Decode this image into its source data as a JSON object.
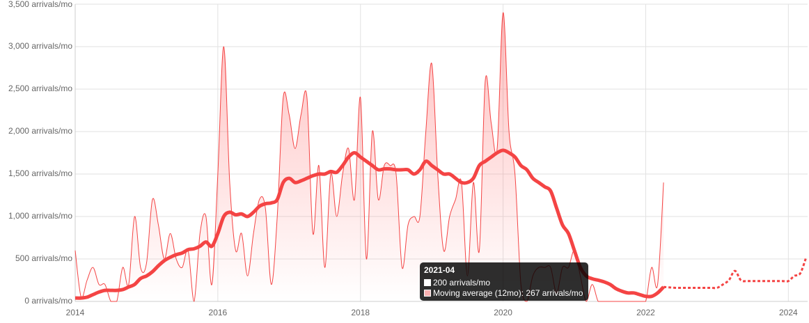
{
  "chart_data": {
    "type": "line",
    "x": [
      "2014-01",
      "2014-02",
      "2014-03",
      "2014-04",
      "2014-05",
      "2014-06",
      "2014-07",
      "2014-08",
      "2014-09",
      "2014-10",
      "2014-11",
      "2014-12",
      "2015-01",
      "2015-02",
      "2015-03",
      "2015-04",
      "2015-05",
      "2015-06",
      "2015-07",
      "2015-08",
      "2015-09",
      "2015-10",
      "2015-11",
      "2015-12",
      "2016-01",
      "2016-02",
      "2016-03",
      "2016-04",
      "2016-05",
      "2016-06",
      "2016-07",
      "2016-08",
      "2016-09",
      "2016-10",
      "2016-11",
      "2016-12",
      "2017-01",
      "2017-02",
      "2017-03",
      "2017-04",
      "2017-05",
      "2017-06",
      "2017-07",
      "2017-08",
      "2017-09",
      "2017-10",
      "2017-11",
      "2017-12",
      "2018-01",
      "2018-02",
      "2018-03",
      "2018-04",
      "2018-05",
      "2018-06",
      "2018-07",
      "2018-08",
      "2018-09",
      "2018-10",
      "2018-11",
      "2018-12",
      "2019-01",
      "2019-02",
      "2019-03",
      "2019-04",
      "2019-05",
      "2019-06",
      "2019-07",
      "2019-08",
      "2019-09",
      "2019-10",
      "2019-11",
      "2019-12",
      "2020-01",
      "2020-02",
      "2020-03",
      "2020-04",
      "2020-05",
      "2020-06",
      "2020-07",
      "2020-08",
      "2020-09",
      "2020-10",
      "2020-11",
      "2020-12",
      "2021-01",
      "2021-02",
      "2021-03",
      "2021-04",
      "2021-05",
      "2021-06",
      "2021-07",
      "2021-08",
      "2021-09",
      "2021-10",
      "2021-11",
      "2021-12",
      "2022-01",
      "2022-02",
      "2022-03",
      "2022-04"
    ],
    "series": [
      {
        "color": "#f44444",
        "fill": true,
        "width": 1,
        "values": [
          600,
          50,
          250,
          400,
          200,
          200,
          0,
          0,
          400,
          200,
          1000,
          400,
          450,
          1200,
          900,
          500,
          800,
          500,
          400,
          600,
          0,
          800,
          1000,
          200,
          1500,
          3000,
          1400,
          600,
          800,
          300,
          800,
          1200,
          1100,
          200,
          1000,
          2400,
          2200,
          1800,
          2200,
          2400,
          800,
          1600,
          400,
          1500,
          1000,
          1500,
          1800,
          1200,
          2400,
          500,
          2000,
          1200,
          1600,
          1600,
          1500,
          400,
          900,
          1000,
          1000,
          2000,
          2800,
          1500,
          600,
          1000,
          1200,
          1400,
          300,
          1400,
          600,
          2600,
          2100,
          1800,
          3400,
          2000,
          1500,
          200,
          0,
          300,
          400,
          400,
          400,
          100,
          400,
          400,
          600,
          300,
          0,
          200,
          0,
          0,
          0,
          0,
          0,
          0,
          0,
          0,
          0,
          400,
          200,
          1400
        ]
      },
      {
        "color": "#f44444",
        "fill": false,
        "width": 5,
        "values": [
          40,
          40,
          50,
          80,
          110,
          130,
          130,
          130,
          140,
          170,
          200,
          270,
          300,
          350,
          420,
          480,
          520,
          550,
          570,
          610,
          620,
          650,
          700,
          650,
          800,
          1000,
          1050,
          1020,
          1030,
          1000,
          1050,
          1120,
          1150,
          1160,
          1200,
          1400,
          1450,
          1400,
          1420,
          1450,
          1480,
          1500,
          1500,
          1530,
          1520,
          1600,
          1700,
          1750,
          1700,
          1650,
          1600,
          1550,
          1560,
          1560,
          1550,
          1550,
          1550,
          1500,
          1550,
          1650,
          1600,
          1550,
          1500,
          1500,
          1450,
          1400,
          1400,
          1450,
          1600,
          1650,
          1700,
          1750,
          1780,
          1750,
          1700,
          1600,
          1550,
          1450,
          1400,
          1350,
          1300,
          1100,
          900,
          800,
          600,
          400,
          300,
          267,
          250,
          230,
          200,
          150,
          120,
          100,
          100,
          80,
          60,
          60,
          100,
          170
        ]
      },
      {
        "color": "#f44444",
        "fill": false,
        "width": 3,
        "dashed": true,
        "x": [
          "2022-04",
          "2022-05",
          "2022-06",
          "2022-07",
          "2022-08",
          "2022-09",
          "2022-10",
          "2022-11",
          "2022-12",
          "2023-01",
          "2023-02",
          "2023-03",
          "2023-04",
          "2023-05",
          "2023-06",
          "2023-07",
          "2023-08",
          "2023-09",
          "2023-10",
          "2023-11",
          "2023-12",
          "2024-01",
          "2024-02",
          "2024-03",
          "2024-04"
        ],
        "values": [
          170,
          165,
          160,
          160,
          160,
          160,
          160,
          160,
          160,
          160,
          200,
          250,
          360,
          250,
          240,
          240,
          240,
          240,
          240,
          240,
          240,
          240,
          300,
          330,
          520
        ]
      }
    ],
    "xlim": [
      2014,
      2024.27
    ],
    "xticks": [
      2014,
      2016,
      2018,
      2020,
      2022,
      2024
    ],
    "ylim": [
      0,
      3500
    ],
    "yticks": [
      {
        "value": 0,
        "label": "0 arrivals/mo"
      },
      {
        "value": 500,
        "label": "500 arrivals/mo"
      },
      {
        "value": 1000,
        "label": "1,000 arrivals/mo"
      },
      {
        "value": 1500,
        "label": "1,500 arrivals/mo"
      },
      {
        "value": 2000,
        "label": "2,000 arrivals/mo"
      },
      {
        "value": 2500,
        "label": "2,500 arrivals/mo"
      },
      {
        "value": 3000,
        "label": "3,000 arrivals/mo"
      },
      {
        "value": 3500,
        "label": "3,500 arrivals/mo"
      }
    ],
    "grid": true,
    "tooltip": {
      "title": "2021-04",
      "lines": [
        "200 arrivals/mo",
        "Moving average (12mo): 267 arrivals/mo"
      ]
    }
  }
}
